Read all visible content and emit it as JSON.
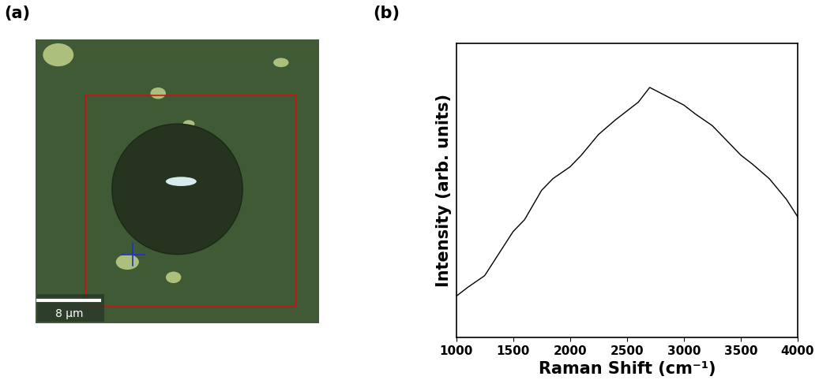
{
  "panel_labels": [
    "(a)",
    "(b)"
  ],
  "image": {
    "scale_bar": {
      "length": 8,
      "label": "8 μm"
    }
  },
  "chart_data": {
    "type": "line",
    "x_label": "Raman Shift (cm⁻¹)",
    "y_label": "Intensity (arb. units)",
    "x": [
      1000,
      1100,
      1250,
      1400,
      1500,
      1600,
      1750,
      1850,
      2000,
      2100,
      2250,
      2400,
      2500,
      2600,
      2700,
      2800,
      2900,
      3000,
      3100,
      3250,
      3400,
      3500,
      3600,
      3750,
      3900,
      4000
    ],
    "values": [
      0.14,
      0.17,
      0.21,
      0.3,
      0.36,
      0.4,
      0.5,
      0.54,
      0.58,
      0.62,
      0.69,
      0.74,
      0.77,
      0.8,
      0.85,
      0.83,
      0.81,
      0.79,
      0.76,
      0.72,
      0.66,
      0.62,
      0.59,
      0.54,
      0.47,
      0.41
    ],
    "color": "#000000",
    "xlim": [
      1000,
      4000
    ],
    "xticks": [
      1000,
      1500,
      2000,
      2500,
      3000,
      3500,
      4000
    ],
    "ylim": [
      0,
      1
    ],
    "yticks": [],
    "tick_labels": "x",
    "grid": false
  }
}
